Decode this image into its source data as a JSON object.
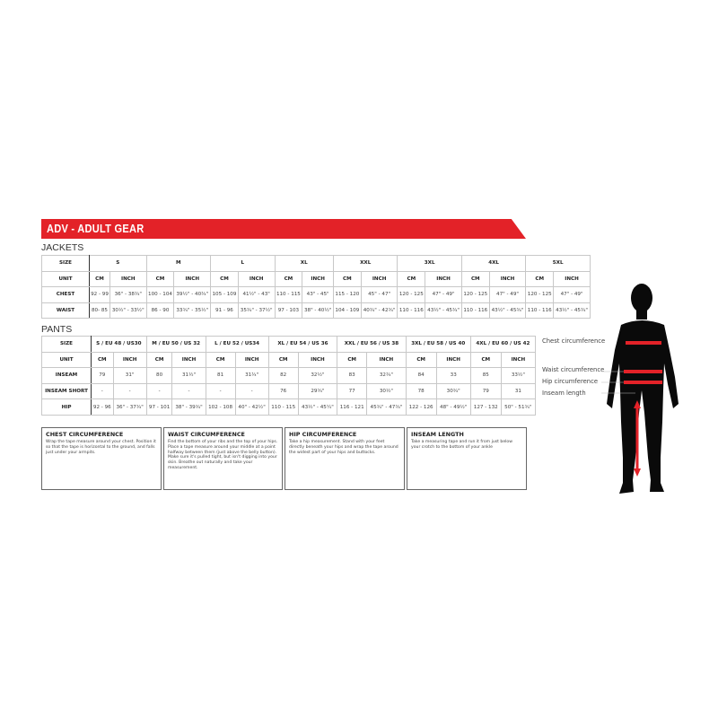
{
  "banner": "ADV - ADULT GEAR",
  "jackets": {
    "title": "JACKETS",
    "size_label": "SIZE",
    "unit_label": "UNIT",
    "cm": "CM",
    "inch": "INCH",
    "sizes": [
      "S",
      "M",
      "L",
      "XL",
      "XXL",
      "3XL",
      "4XL",
      "5XL"
    ],
    "rows": [
      {
        "label": "CHEST",
        "values": [
          "92 - 99",
          "36\" - 38¾\"",
          "100 - 104",
          "39½\" - 40¾\"",
          "105 - 109",
          "41½\" - 43\"",
          "110 - 115",
          "43\" - 45\"",
          "115 - 120",
          "45\" - 47\"",
          "120 - 125",
          "47\" - 49\"",
          "120 - 125",
          "47\" - 49\"",
          "120 - 125",
          "47\" - 49\""
        ]
      },
      {
        "label": "WAIST",
        "values": [
          "80- 85",
          "30½\" - 33½\"",
          "86 - 90",
          "33¾\" - 35½\"",
          "91 - 96",
          "35¾\" - 37½\"",
          "97 - 103",
          "38\" - 40½\"",
          "104 - 109",
          "40¾\" - 42¾\"",
          "110 - 116",
          "43½\" - 45¾\"",
          "110 - 116",
          "43½\" - 45¾\"",
          "110 - 116",
          "43½\" - 45¾\""
        ]
      }
    ]
  },
  "pants": {
    "title": "PANTS",
    "size_label": "SIZE",
    "unit_label": "UNIT",
    "cm": "CM",
    "inch": "INCH",
    "sizes": [
      "S / EU 48 / US30",
      "M / EU 50 / US 32",
      "L / EU 52 / US34",
      "XL / EU 54 / US 36",
      "XXL / EU 56 / US 38",
      "3XL / EU 58 / US 40",
      "4XL / EU 60 / US 42"
    ],
    "rows": [
      {
        "label": "INSEAM",
        "values": [
          "79",
          "31\"",
          "80",
          "31½\"",
          "81",
          "31¾\"",
          "82",
          "32½\"",
          "83",
          "32¾\"",
          "84",
          "33",
          "85",
          "33½\""
        ]
      },
      {
        "label": "INSEAM SHORT",
        "values": [
          "-",
          "-",
          "-",
          "-",
          "-",
          "-",
          "76",
          "29¾\"",
          "77",
          "30½\"",
          "78",
          "30¾\"",
          "79",
          "31"
        ]
      },
      {
        "label": "HIP",
        "values": [
          "92 - 96",
          "36\" - 37¾\"",
          "97 - 101",
          "38\" - 39¾\"",
          "102 - 108",
          "40\" - 42½\"",
          "110 - 115",
          "43½\" - 45¼\"",
          "116 - 121",
          "45¾\" - 47¾\"",
          "122 - 126",
          "48\" - 49½\"",
          "127 - 132",
          "50\" - 51¾\""
        ]
      }
    ]
  },
  "guides": [
    {
      "title": "CHEST CIRCUMFERENCE",
      "text": "Wrap the tape measure around your chest. Position it so that the tape is horizontal to the ground, and falls just under your armpits."
    },
    {
      "title": "WAIST CIRCUMFERENCE",
      "text": "Find the bottom of your ribs and the top of your hips. Place a tape measure around your middle at a point halfway between them (just above the belly button). Make sure it's pulled tight, but isn't digging into your skin. Breathe out naturally and take your measurement."
    },
    {
      "title": "HIP CIRCUMFERENCE",
      "text": "Take a hip measurement. Stand with your feet directly beneath your hips and wrap the tape around the widest part of your hips and buttocks."
    },
    {
      "title": "INSEAM LENGTH",
      "text": "Take a measuring tape and run it from just below your crotch to the bottom of your ankle"
    }
  ],
  "figure": {
    "labels": [
      "Chest circumference",
      "Waist circumference",
      "Hip circumference",
      "Inseam length"
    ],
    "accent": "#e32228"
  }
}
